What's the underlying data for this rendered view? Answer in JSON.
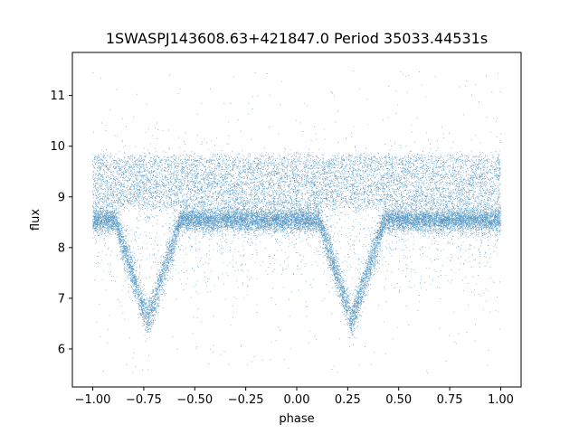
{
  "chart_data": {
    "type": "scatter",
    "title": "1SWASPJ143608.63+421847.0 Period 35033.44531s",
    "xlabel": "phase",
    "ylabel": "flux",
    "xlim": [
      -1.1,
      1.1
    ],
    "ylim": [
      5.25,
      11.85
    ],
    "x_ticks": [
      -1.0,
      -0.75,
      -0.5,
      -0.25,
      0.0,
      0.25,
      0.5,
      0.75,
      1.0
    ],
    "x_tick_labels": [
      "−1.00",
      "−0.75",
      "−0.50",
      "−0.25",
      "0.00",
      "0.25",
      "0.50",
      "0.75",
      "1.00"
    ],
    "y_ticks": [
      6,
      7,
      8,
      9,
      10,
      11
    ],
    "y_tick_labels": [
      "6",
      "7",
      "8",
      "9",
      "10",
      "11"
    ],
    "grid": false,
    "legend": "none",
    "marker_color": "#1f77b4",
    "x_range_of_points": [
      -1.0,
      1.0
    ],
    "baseline_flux": 8.55,
    "baseline_band": [
      8.2,
      8.9
    ],
    "upper_band": [
      8.9,
      9.6
    ],
    "primary_eclipse": {
      "phase": -0.73,
      "min_flux": 6.55
    },
    "secondary_eclipse": {
      "phase": 0.27,
      "min_flux": 6.55
    },
    "eclipse_half_width_phase": 0.16,
    "scatter_flux_range": [
      5.5,
      11.5
    ],
    "approx_point_count": 60000
  }
}
